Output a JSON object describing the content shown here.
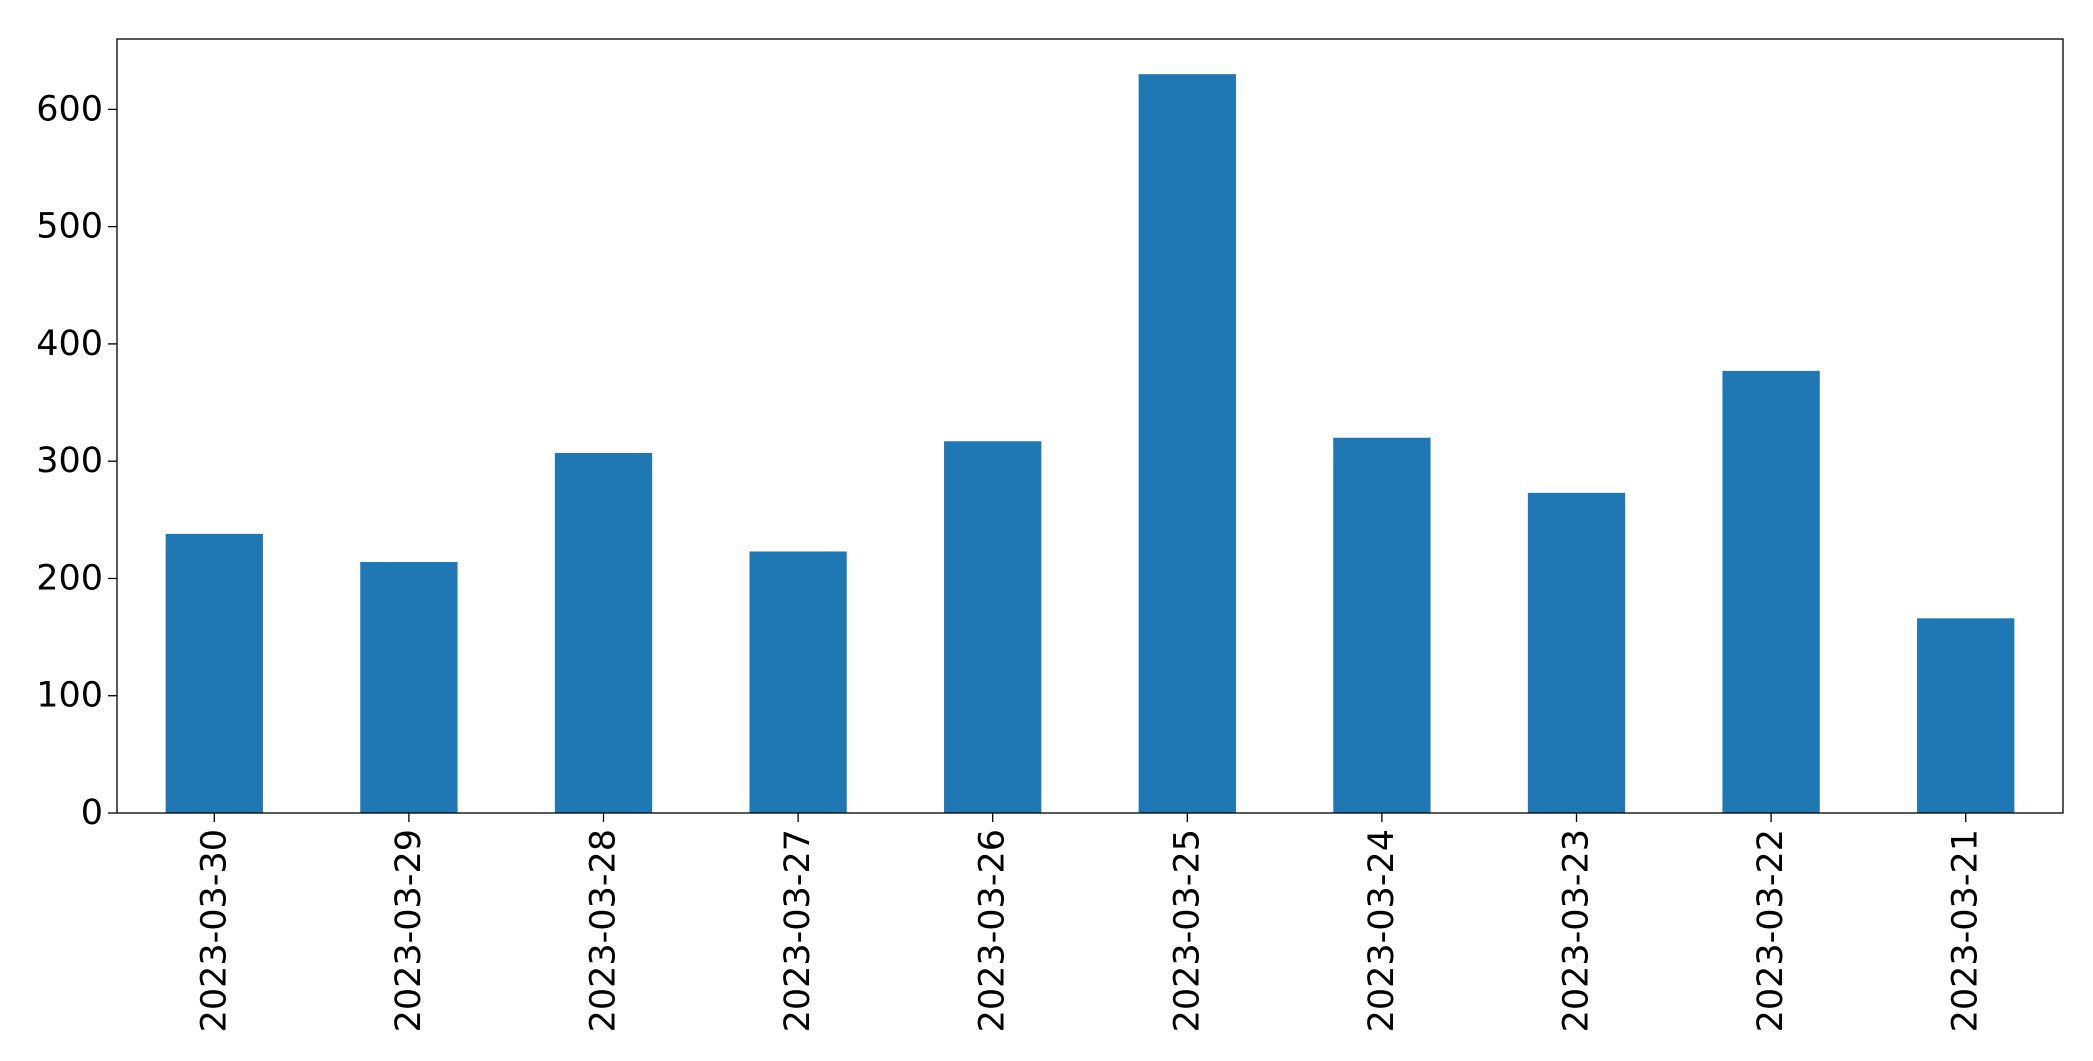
{
  "chart_data": {
    "type": "bar",
    "title": "",
    "xlabel": "",
    "ylabel": "",
    "categories": [
      "2023-03-30",
      "2023-03-29",
      "2023-03-28",
      "2023-03-27",
      "2023-03-26",
      "2023-03-25",
      "2023-03-24",
      "2023-03-23",
      "2023-03-22",
      "2023-03-21"
    ],
    "values": [
      238,
      214,
      307,
      223,
      317,
      630,
      320,
      273,
      377,
      166
    ],
    "ylim": [
      0,
      660
    ],
    "yticks": [
      0,
      100,
      200,
      300,
      400,
      500,
      600
    ],
    "bar_color": "#1f77b4",
    "grid": false,
    "legend": "none"
  }
}
